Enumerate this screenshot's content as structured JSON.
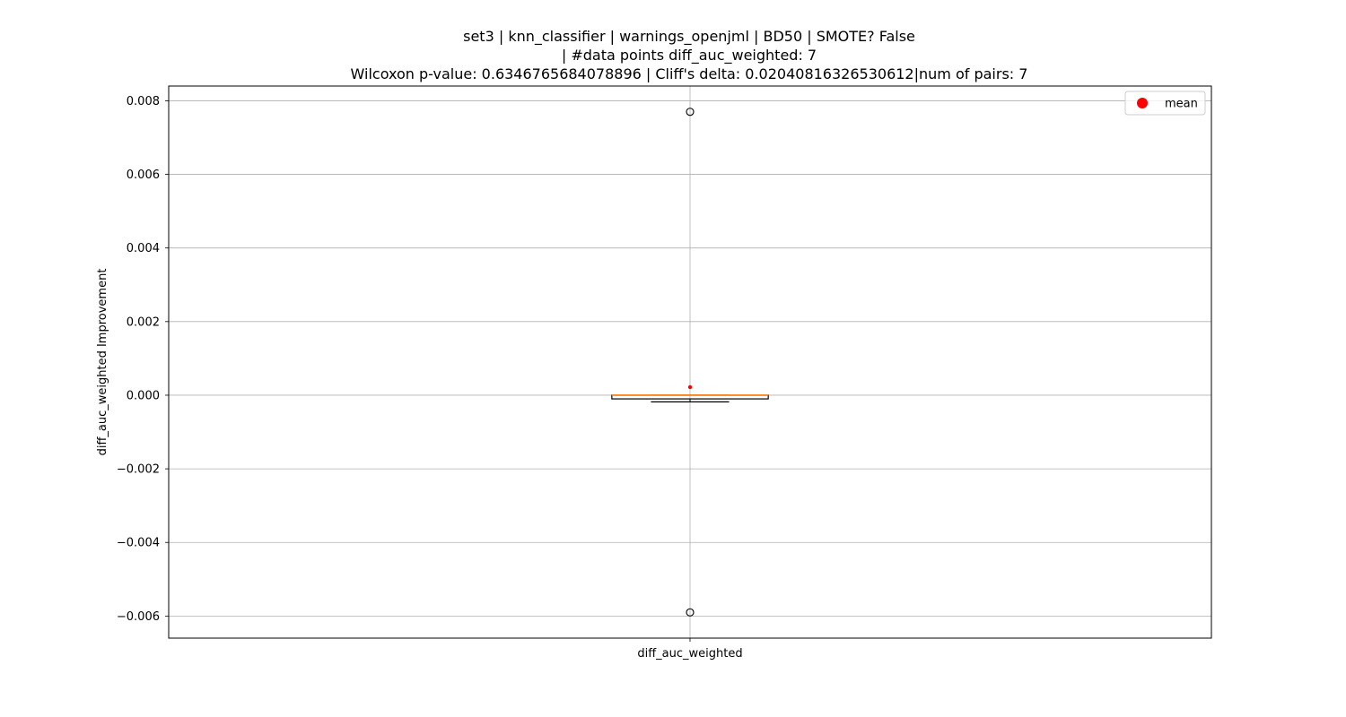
{
  "title_lines": [
    "set3 | knn_classifier | warnings_openjml | BD50 | SMOTE? False",
    "| #data points diff_auc_weighted: 7",
    "Wilcoxon p-value: 0.6346765684078896 | Cliff's delta: 0.02040816326530612|num of pairs: 7"
  ],
  "chart_data": {
    "type": "box",
    "categories": [
      "diff_auc_weighted"
    ],
    "ylabel": "diff_auc_weighted Improvement",
    "xlabel": "",
    "ylim": [
      -0.0066,
      0.0084
    ],
    "yticks": [
      0.008,
      0.006,
      0.004,
      0.002,
      0.0,
      -0.002,
      -0.004,
      -0.006
    ],
    "ytick_labels": [
      "0.008",
      "0.006",
      "0.004",
      "0.002",
      "0.000",
      "−0.002",
      "−0.004",
      "−0.006"
    ],
    "grid": true,
    "legend": {
      "position": "top-right",
      "entries": [
        "mean"
      ]
    },
    "colors": {
      "median": "#ff7f0e",
      "mean": "#ff0000",
      "box": "#000000",
      "grid": "#b0b0b0"
    },
    "boxes": [
      {
        "category": "diff_auc_weighted",
        "q1": -0.0001,
        "median": 0.0,
        "q3": 0.0,
        "whisker_low": -0.00018,
        "whisker_high": 0.0,
        "mean": 0.00022,
        "outliers": [
          0.0077,
          -0.0059
        ]
      }
    ]
  }
}
